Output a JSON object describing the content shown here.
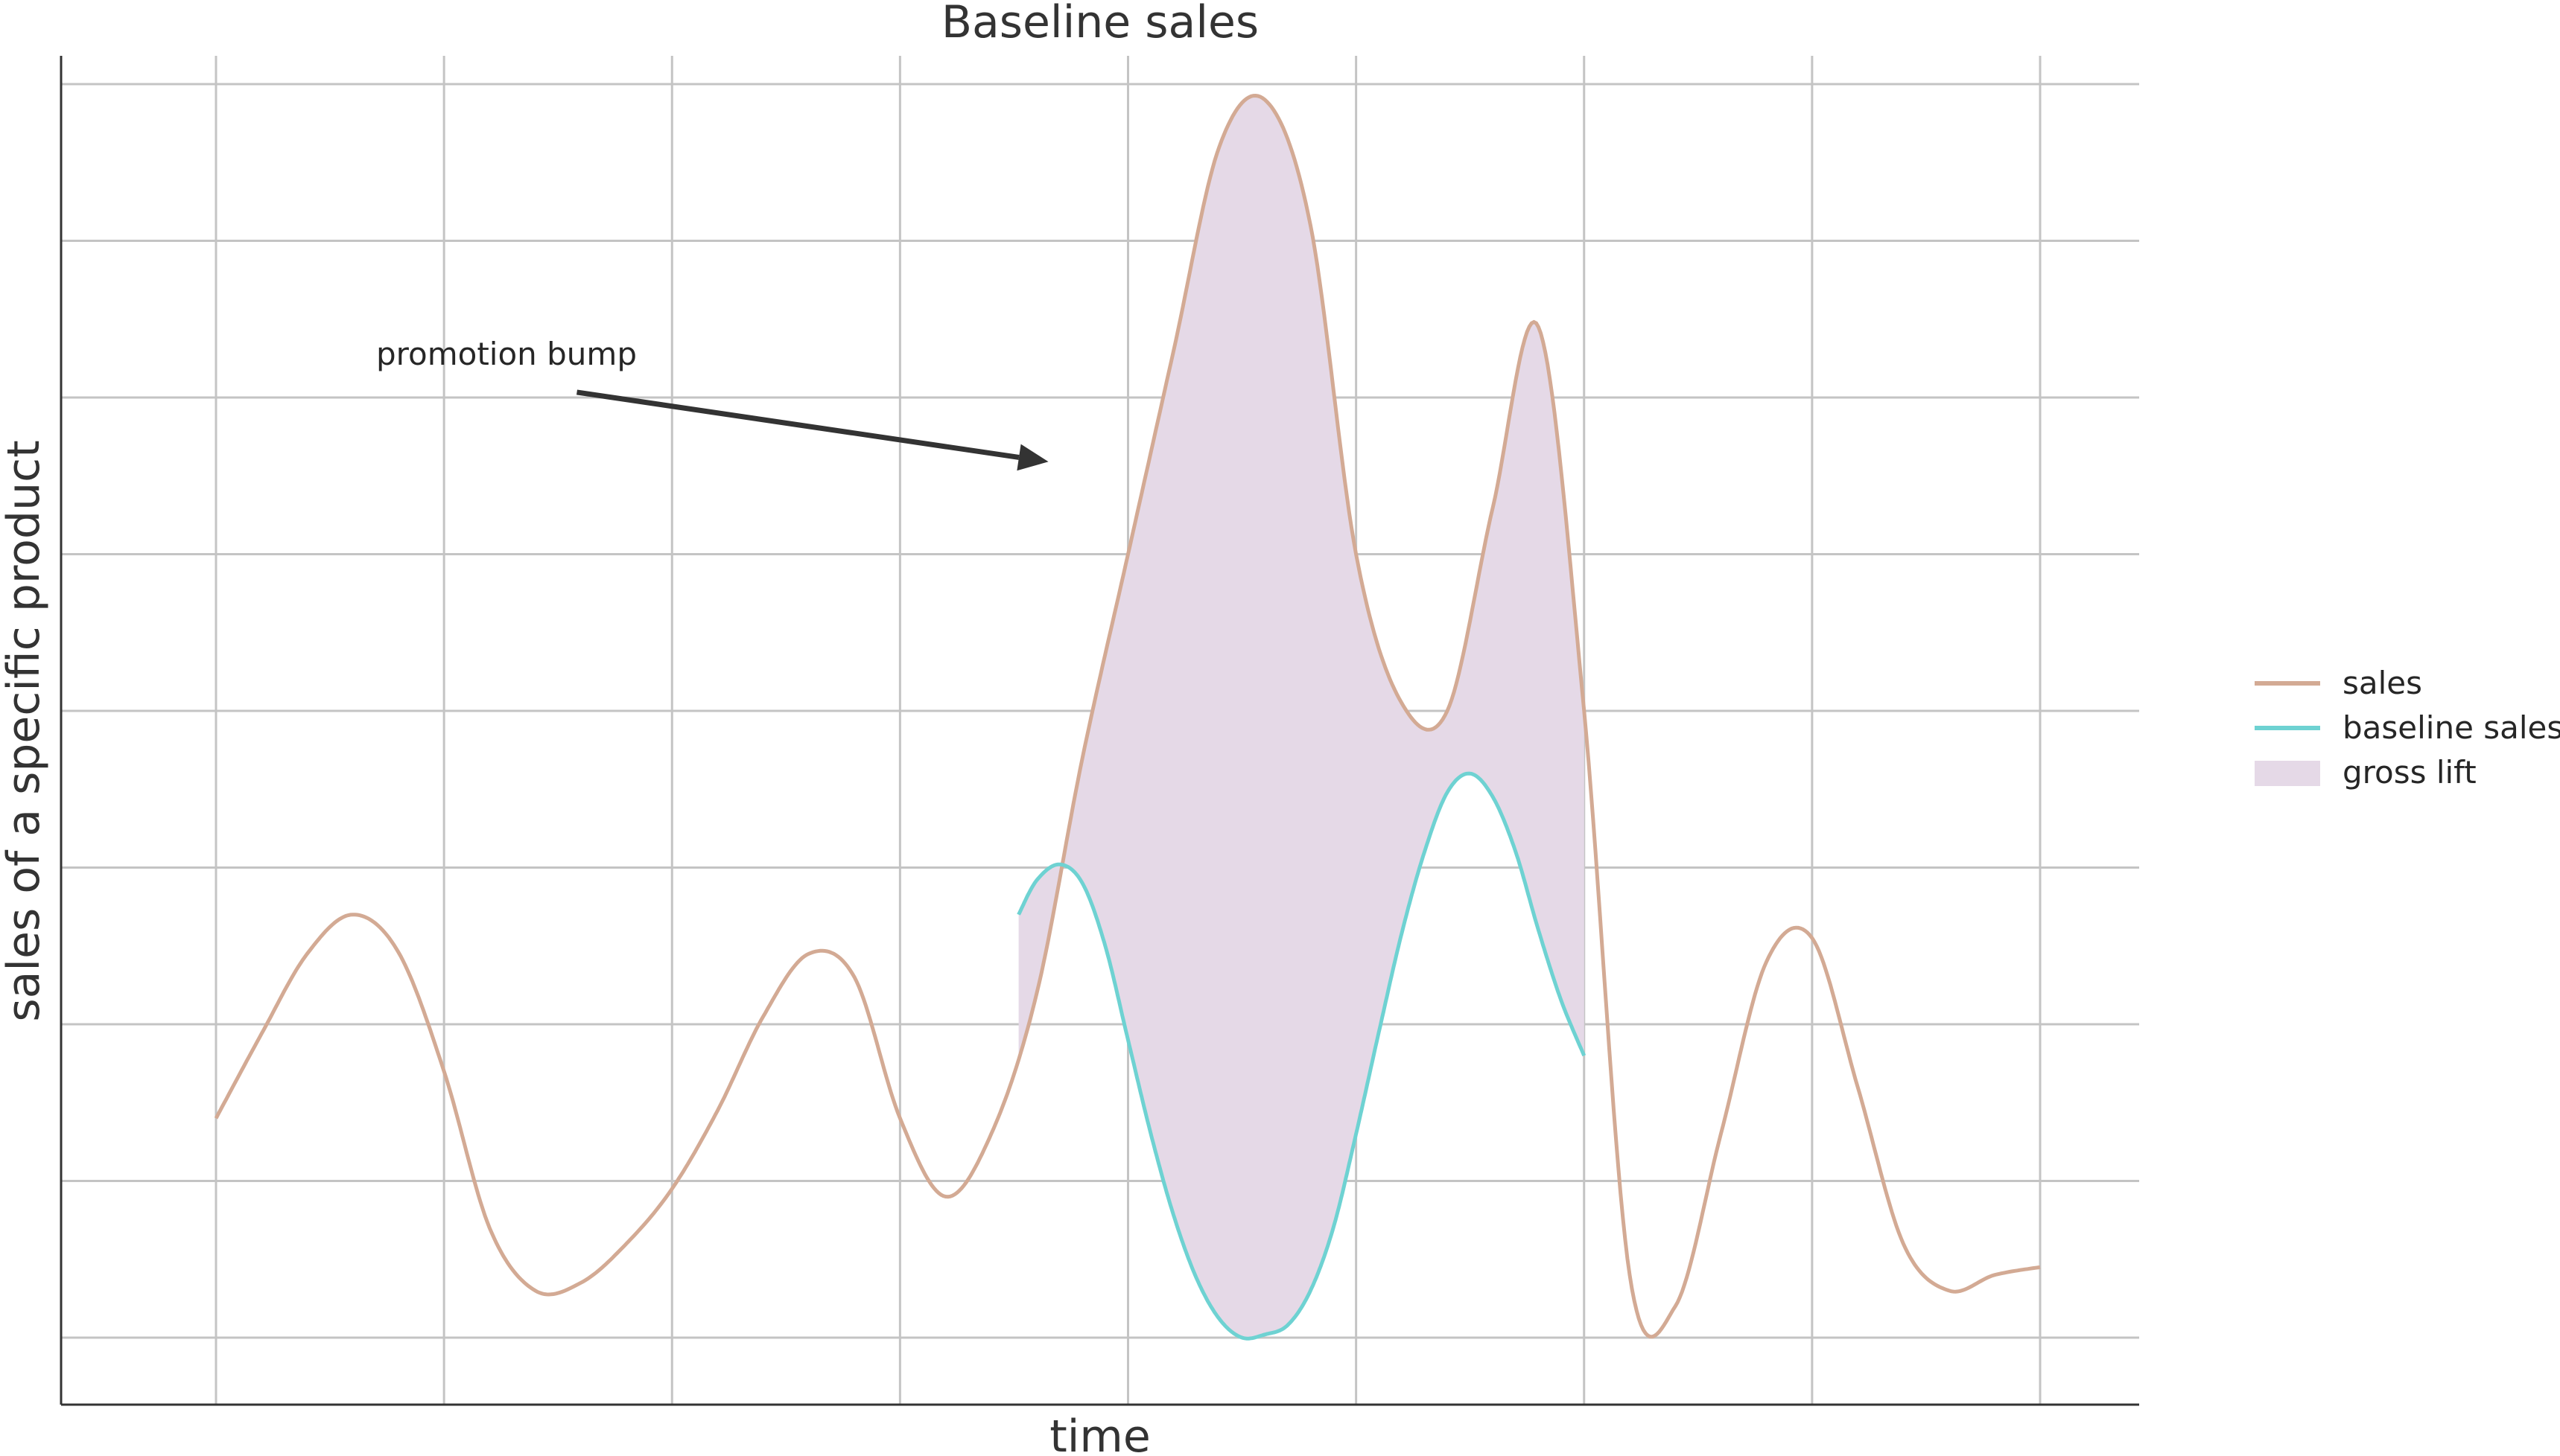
{
  "chart_data": {
    "type": "line",
    "title": "Baseline sales",
    "xlabel": "time",
    "ylabel": "sales of a specific product",
    "xlim": [
      0,
      8
    ],
    "ylim": [
      0,
      8
    ],
    "grid": true,
    "tick_labels_shown": false,
    "legend_position": "right",
    "colors": {
      "sales": "#d3aa94",
      "baseline": "#6ed2d2",
      "lift": "#e5d9e7",
      "text": "#333333",
      "annotation_arrow": "#333333"
    },
    "series": [
      {
        "name": "sales",
        "x": [
          0,
          0.2,
          0.4,
          0.6,
          0.8,
          1.0,
          1.2,
          1.4,
          1.6,
          1.8,
          2.0,
          2.2,
          2.4,
          2.6,
          2.8,
          3.0,
          3.2,
          3.4,
          3.6,
          3.8,
          4.0,
          4.2,
          4.4,
          4.6,
          4.8,
          5.0,
          5.2,
          5.4,
          5.6,
          5.8,
          6.0,
          6.2,
          6.4,
          6.6,
          6.8,
          7.0,
          7.2,
          7.4,
          7.6,
          7.8,
          8.0
        ],
        "y": [
          1.4,
          1.94,
          2.45,
          2.7,
          2.46,
          1.7,
          0.7,
          0.3,
          0.35,
          0.6,
          0.95,
          1.45,
          2.05,
          2.45,
          2.3,
          1.4,
          0.9,
          1.3,
          2.2,
          3.7,
          5.0,
          6.3,
          7.6,
          7.9,
          7.1,
          5.0,
          4.05,
          4.0,
          5.3,
          6.45,
          4.0,
          0.4,
          0.2,
          1.3,
          2.4,
          2.55,
          1.6,
          0.6,
          0.3,
          0.4,
          0.45
        ]
      },
      {
        "name": "baseline sales",
        "x": [
          3.52,
          3.6,
          3.7,
          3.8,
          3.9,
          4.0,
          4.1,
          4.2,
          4.3,
          4.4,
          4.5,
          4.6,
          4.7,
          4.8,
          4.9,
          5.0,
          5.1,
          5.2,
          5.3,
          5.4,
          5.5,
          5.6,
          5.7,
          5.8,
          5.9,
          6.0
        ],
        "y": [
          2.7,
          2.92,
          3.02,
          2.9,
          2.5,
          1.9,
          1.3,
          0.78,
          0.38,
          0.12,
          0.0,
          0.02,
          0.08,
          0.3,
          0.7,
          1.3,
          1.95,
          2.58,
          3.1,
          3.48,
          3.6,
          3.45,
          3.1,
          2.6,
          2.15,
          1.8
        ]
      }
    ],
    "fill_between": {
      "name": "gross lift",
      "between": [
        "sales",
        "baseline sales"
      ],
      "x_range": [
        3.52,
        6.0
      ]
    },
    "annotations": [
      {
        "text": "promotion bump",
        "xytext": [
          1.55,
          6.2
        ],
        "xy": [
          3.52,
          5.4
        ]
      }
    ],
    "legend": [
      "sales",
      "baseline sales",
      "gross lift"
    ]
  }
}
